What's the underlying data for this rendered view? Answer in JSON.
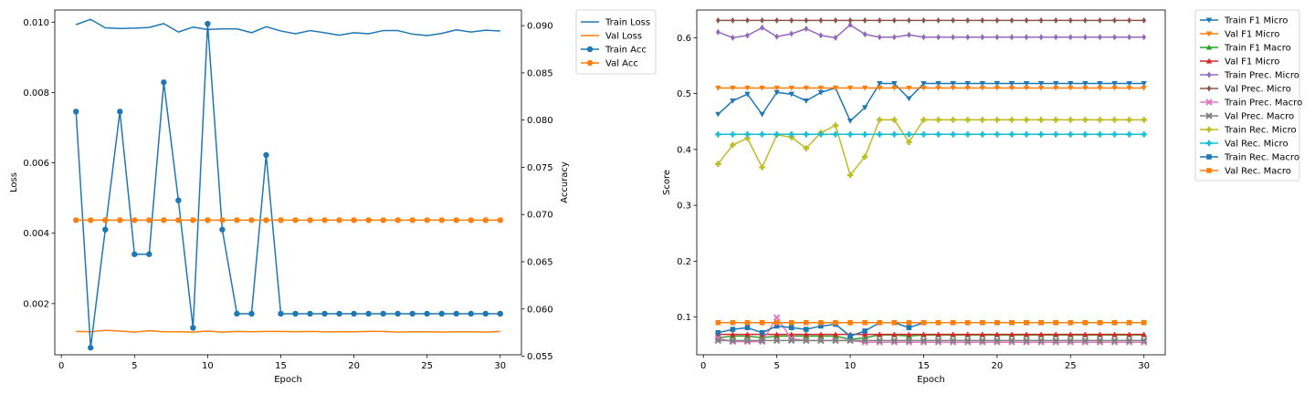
{
  "chart_data": [
    {
      "type": "line",
      "xlabel": "Epoch",
      "ylabel": "Loss",
      "ylabel_right": "Accuracy",
      "xlim": [
        -0.45,
        31.45
      ],
      "ylim": [
        0.000545,
        0.010345
      ],
      "ylim_right": [
        0.05515,
        0.09165
      ],
      "xticks": [
        0,
        5,
        10,
        15,
        20,
        25,
        30
      ],
      "yticks": [
        0.002,
        0.004,
        0.006,
        0.008,
        0.01
      ],
      "yticks_right": [
        0.055,
        0.06,
        0.065,
        0.07,
        0.075,
        0.08,
        0.085,
        0.09
      ],
      "x": [
        1,
        2,
        3,
        4,
        5,
        6,
        7,
        8,
        9,
        10,
        11,
        12,
        13,
        14,
        15,
        16,
        17,
        18,
        19,
        20,
        21,
        22,
        23,
        24,
        25,
        26,
        27,
        28,
        29,
        30
      ],
      "legend_position": "outside-right",
      "grid": false,
      "series": [
        {
          "name": "Train Loss",
          "axis": "left",
          "color": "#1f77b4",
          "marker": "none",
          "values": [
            0.00993,
            0.01008,
            0.00984,
            0.00982,
            0.00983,
            0.00985,
            0.00996,
            0.00972,
            0.00986,
            0.00979,
            0.00981,
            0.00981,
            0.0097,
            0.00987,
            0.00975,
            0.00967,
            0.00976,
            0.0097,
            0.00963,
            0.0097,
            0.00967,
            0.00976,
            0.00976,
            0.00966,
            0.00962,
            0.00968,
            0.00978,
            0.00972,
            0.00977,
            0.00975
          ]
        },
        {
          "name": "Val Loss",
          "axis": "left",
          "color": "#ff7f0e",
          "marker": "none",
          "values": [
            0.00121,
            0.0012,
            0.00124,
            0.00122,
            0.00119,
            0.00123,
            0.0012,
            0.0012,
            0.00119,
            0.00122,
            0.00119,
            0.00121,
            0.0012,
            0.00121,
            0.00121,
            0.0012,
            0.00121,
            0.0012,
            0.0012,
            0.0012,
            0.00121,
            0.00121,
            0.00119,
            0.0012,
            0.0012,
            0.00119,
            0.0012,
            0.0012,
            0.00119,
            0.00121
          ]
        },
        {
          "name": "Train Acc",
          "axis": "right",
          "color": "#1f77b4",
          "marker": "circle",
          "values": [
            0.0809,
            0.0559,
            0.0684,
            0.0809,
            0.0658,
            0.0658,
            0.084,
            0.0715,
            0.058,
            0.0902,
            0.0684,
            0.0595,
            0.0595,
            0.0763,
            0.0595,
            0.0595,
            0.0595,
            0.0595,
            0.0595,
            0.0595,
            0.0595,
            0.0595,
            0.0595,
            0.0595,
            0.0595,
            0.0595,
            0.0595,
            0.0595,
            0.0595,
            0.0595
          ]
        },
        {
          "name": "Val Acc",
          "axis": "right",
          "color": "#ff7f0e",
          "marker": "circle",
          "values": [
            0.0694,
            0.0694,
            0.0694,
            0.0694,
            0.0694,
            0.0694,
            0.0694,
            0.0694,
            0.0694,
            0.0694,
            0.0694,
            0.0694,
            0.0694,
            0.0694,
            0.0694,
            0.0694,
            0.0694,
            0.0694,
            0.0694,
            0.0694,
            0.0694,
            0.0694,
            0.0694,
            0.0694,
            0.0694,
            0.0694,
            0.0694,
            0.0694,
            0.0694,
            0.0694
          ]
        }
      ]
    },
    {
      "type": "line",
      "xlabel": "Epoch",
      "ylabel": "Score",
      "xlim": [
        -0.45,
        31.45
      ],
      "ylim": [
        0.0325,
        0.6495
      ],
      "xticks": [
        0,
        5,
        10,
        15,
        20,
        25,
        30
      ],
      "yticks": [
        0.1,
        0.2,
        0.3,
        0.4,
        0.5,
        0.6
      ],
      "x": [
        1,
        2,
        3,
        4,
        5,
        6,
        7,
        8,
        9,
        10,
        11,
        12,
        13,
        14,
        15,
        16,
        17,
        18,
        19,
        20,
        21,
        22,
        23,
        24,
        25,
        26,
        27,
        28,
        29,
        30
      ],
      "legend_position": "outside-right",
      "grid": false,
      "series": [
        {
          "name": "Train F1 Micro",
          "color": "#1f77b4",
          "marker": "triangle-down",
          "values": [
            0.463,
            0.487,
            0.499,
            0.463,
            0.502,
            0.499,
            0.487,
            0.502,
            0.51,
            0.451,
            0.475,
            0.518,
            0.518,
            0.491,
            0.518,
            0.518,
            0.518,
            0.518,
            0.518,
            0.518,
            0.518,
            0.518,
            0.518,
            0.518,
            0.518,
            0.518,
            0.518,
            0.518,
            0.518,
            0.518
          ]
        },
        {
          "name": "Val F1 Micro",
          "color": "#ff7f0e",
          "marker": "triangle-down",
          "values": [
            0.51,
            0.51,
            0.51,
            0.51,
            0.51,
            0.51,
            0.51,
            0.51,
            0.51,
            0.51,
            0.51,
            0.51,
            0.51,
            0.51,
            0.51,
            0.51,
            0.51,
            0.51,
            0.51,
            0.51,
            0.51,
            0.51,
            0.51,
            0.51,
            0.51,
            0.51,
            0.51,
            0.51,
            0.51,
            0.51
          ]
        },
        {
          "name": "Train F1 Macro",
          "color": "#2ca02c",
          "marker": "triangle-up",
          "values": [
            0.063,
            0.066,
            0.066,
            0.063,
            0.066,
            0.066,
            0.066,
            0.066,
            0.066,
            0.06,
            0.063,
            0.068,
            0.068,
            0.066,
            0.068,
            0.068,
            0.068,
            0.068,
            0.068,
            0.068,
            0.068,
            0.068,
            0.068,
            0.068,
            0.068,
            0.068,
            0.068,
            0.068,
            0.068,
            0.068
          ]
        },
        {
          "name": "Val F1 Micro",
          "color": "#d62728",
          "marker": "triangle-up",
          "values": [
            0.069,
            0.069,
            0.069,
            0.069,
            0.069,
            0.069,
            0.069,
            0.069,
            0.069,
            0.069,
            0.069,
            0.069,
            0.069,
            0.069,
            0.069,
            0.069,
            0.069,
            0.069,
            0.069,
            0.069,
            0.069,
            0.069,
            0.069,
            0.069,
            0.069,
            0.069,
            0.069,
            0.069,
            0.069,
            0.069
          ]
        },
        {
          "name": "Train Prec. Micro",
          "color": "#9467bd",
          "marker": "diamond",
          "values": [
            0.61,
            0.6,
            0.604,
            0.618,
            0.602,
            0.607,
            0.616,
            0.604,
            0.6,
            0.623,
            0.606,
            0.601,
            0.601,
            0.605,
            0.601,
            0.601,
            0.601,
            0.601,
            0.601,
            0.601,
            0.601,
            0.601,
            0.601,
            0.601,
            0.601,
            0.601,
            0.601,
            0.601,
            0.601,
            0.601
          ]
        },
        {
          "name": "Val Prec. Micro",
          "color": "#8c564b",
          "marker": "diamond",
          "values": [
            0.631,
            0.631,
            0.631,
            0.631,
            0.631,
            0.631,
            0.631,
            0.631,
            0.631,
            0.631,
            0.631,
            0.631,
            0.631,
            0.631,
            0.631,
            0.631,
            0.631,
            0.631,
            0.631,
            0.631,
            0.631,
            0.631,
            0.631,
            0.631,
            0.631,
            0.631,
            0.631,
            0.631,
            0.631,
            0.631
          ]
        },
        {
          "name": "Train Prec. Macro",
          "color": "#e377c2",
          "marker": "x",
          "values": [
            0.062,
            0.056,
            0.056,
            0.056,
            0.099,
            0.061,
            0.058,
            0.058,
            0.058,
            0.058,
            0.055,
            0.055,
            0.055,
            0.055,
            0.055,
            0.055,
            0.055,
            0.055,
            0.055,
            0.055,
            0.055,
            0.055,
            0.055,
            0.055,
            0.055,
            0.055,
            0.055,
            0.055,
            0.055,
            0.055
          ]
        },
        {
          "name": "Val Prec. Macro",
          "color": "#7f7f7f",
          "marker": "x",
          "values": [
            0.058,
            0.058,
            0.058,
            0.058,
            0.058,
            0.058,
            0.058,
            0.058,
            0.058,
            0.058,
            0.058,
            0.058,
            0.058,
            0.058,
            0.058,
            0.058,
            0.058,
            0.058,
            0.058,
            0.058,
            0.058,
            0.058,
            0.058,
            0.058,
            0.058,
            0.058,
            0.058,
            0.058,
            0.058,
            0.058
          ]
        },
        {
          "name": "Train Rec. Micro",
          "color": "#bcbd22",
          "marker": "plus",
          "values": [
            0.374,
            0.408,
            0.42,
            0.368,
            0.426,
            0.422,
            0.402,
            0.43,
            0.443,
            0.354,
            0.387,
            0.453,
            0.453,
            0.413,
            0.453,
            0.453,
            0.453,
            0.453,
            0.453,
            0.453,
            0.453,
            0.453,
            0.453,
            0.453,
            0.453,
            0.453,
            0.453,
            0.453,
            0.453,
            0.453
          ]
        },
        {
          "name": "Val Rec. Micro",
          "color": "#17becf",
          "marker": "plus",
          "values": [
            0.427,
            0.427,
            0.427,
            0.427,
            0.427,
            0.427,
            0.427,
            0.427,
            0.427,
            0.427,
            0.427,
            0.427,
            0.427,
            0.427,
            0.427,
            0.427,
            0.427,
            0.427,
            0.427,
            0.427,
            0.427,
            0.427,
            0.427,
            0.427,
            0.427,
            0.427,
            0.427,
            0.427,
            0.427,
            0.427
          ]
        },
        {
          "name": "Train Rec. Macro",
          "color": "#1f77b4",
          "marker": "square",
          "values": [
            0.072,
            0.078,
            0.081,
            0.072,
            0.084,
            0.081,
            0.078,
            0.084,
            0.087,
            0.066,
            0.075,
            0.09,
            0.09,
            0.081,
            0.09,
            0.09,
            0.09,
            0.09,
            0.09,
            0.09,
            0.09,
            0.09,
            0.09,
            0.09,
            0.09,
            0.09,
            0.09,
            0.09,
            0.09,
            0.09
          ]
        },
        {
          "name": "Val Rec. Macro",
          "color": "#ff7f0e",
          "marker": "square",
          "values": [
            0.09,
            0.09,
            0.09,
            0.09,
            0.09,
            0.09,
            0.09,
            0.09,
            0.09,
            0.09,
            0.09,
            0.09,
            0.09,
            0.09,
            0.09,
            0.09,
            0.09,
            0.09,
            0.09,
            0.09,
            0.09,
            0.09,
            0.09,
            0.09,
            0.09,
            0.09,
            0.09,
            0.09,
            0.09,
            0.09
          ]
        }
      ]
    }
  ]
}
